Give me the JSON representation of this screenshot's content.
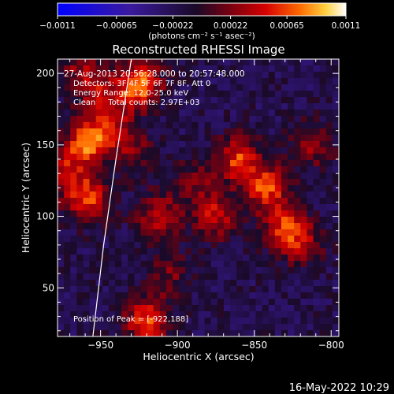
{
  "chart_data": {
    "type": "heatmap",
    "title": "Reconstructed RHESSI Image",
    "xlabel": "Heliocentric X (arcsec)",
    "ylabel": "Heliocentric Y (arcsec)",
    "xlim": [
      -978,
      -795
    ],
    "ylim": [
      16,
      210
    ],
    "x_ticks": [
      -950,
      -900,
      -850,
      -800
    ],
    "y_ticks": [
      50,
      100,
      150,
      200
    ],
    "colorbar": {
      "min": -0.0011,
      "max": 0.0011,
      "ticks": [
        "-0.0011",
        "-0.00065",
        "-0.00022",
        "0.00022",
        "0.00065",
        "0.0011"
      ],
      "unit_label": "(photons cm⁻² s⁻¹ asec⁻²)"
    },
    "annotations": {
      "time": "27-Aug-2013 20:56:28.000 to 20:57:48.000",
      "detectors": "Detectors: 3F 4F 5F 6F 7F 8F, Att 0",
      "energy": "Energy Range: 12.0-25.0 keV",
      "method": "Clean     Total counts: 2.97E+03",
      "peak": "Position of Peak = [-922,188]"
    },
    "sources": [
      {
        "x": -925,
        "y": 192,
        "value": 0.001
      },
      {
        "x": -960,
        "y": 150,
        "value": 0.00085
      },
      {
        "x": -958,
        "y": 112,
        "value": 0.0008
      },
      {
        "x": -945,
        "y": 165,
        "value": 0.0006
      },
      {
        "x": -930,
        "y": 145,
        "value": 0.0004
      },
      {
        "x": -912,
        "y": 100,
        "value": 0.0006
      },
      {
        "x": -888,
        "y": 125,
        "value": 0.00035
      },
      {
        "x": -875,
        "y": 100,
        "value": 0.0006
      },
      {
        "x": -860,
        "y": 140,
        "value": 0.00075
      },
      {
        "x": -842,
        "y": 120,
        "value": 0.0008
      },
      {
        "x": -830,
        "y": 92,
        "value": 0.0007
      },
      {
        "x": -812,
        "y": 150,
        "value": 0.00045
      },
      {
        "x": -818,
        "y": 80,
        "value": 0.0004
      },
      {
        "x": -920,
        "y": 28,
        "value": 0.0008
      },
      {
        "x": -905,
        "y": 60,
        "value": 0.00035
      },
      {
        "x": -950,
        "y": 188,
        "value": 0.0004
      },
      {
        "x": -963,
        "y": 200,
        "value": 0.0004
      },
      {
        "x": -975,
        "y": 130,
        "value": 0.0005
      }
    ],
    "limb_curve": [
      [
        -955,
        16
      ],
      [
        -948,
        80
      ],
      [
        -940,
        140
      ],
      [
        -930,
        210
      ]
    ]
  },
  "footer": {
    "date": "16-May-2022 10:29"
  }
}
